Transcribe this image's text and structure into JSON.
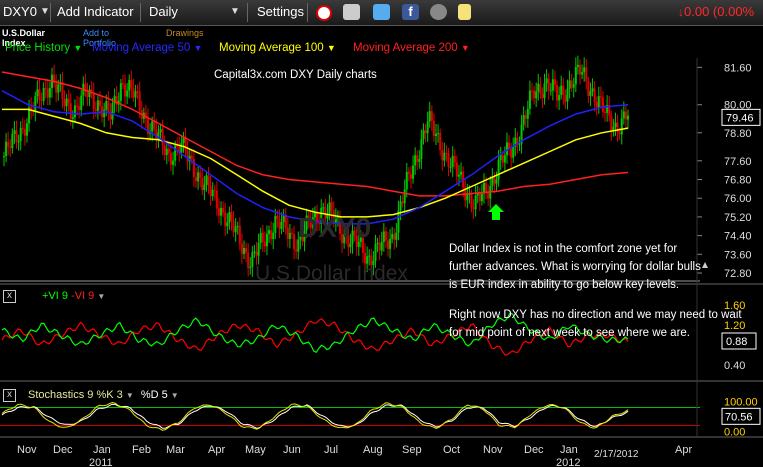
{
  "toolbar": {
    "symbol": "DXY0",
    "add_indicator": "Add Indicator",
    "period": "Daily",
    "settings": "Settings",
    "change": "0.00 (0.00%"
  },
  "sub": {
    "name": "U.S.Dollar Index",
    "add_portfolio": "Add to Portfolio",
    "drawings": "Drawings"
  },
  "legend": {
    "price": "Price History",
    "ma50": "Moving Average 50",
    "ma100": "Moving Average 100",
    "ma200": "Moving Average 200"
  },
  "annotations": {
    "title": "Capital3x.com DXY Daily charts",
    "line1": "Dollar Index is not in the comfort zone yet for",
    "line2": "further advances. What is worrying for dollar bulls",
    "line3": "is EUR index in ability to go below key levels.",
    "line4": "Right now DXY has no direction and we may need to wait",
    "line5": "for mid point of next week to see where we are.",
    "watermark_symbol": "DXY0",
    "watermark_name": "U.S.Dollar Index"
  },
  "vi_panel": {
    "plus": "+VI 9",
    "minus": "-VI 9"
  },
  "stoch_panel": {
    "label": "Stochastics 9 %K 3",
    "d": "%D 5"
  },
  "date_stamp": "2/17/2012",
  "colors": {
    "price_up": "#00c800",
    "price_down": "#e00000",
    "ma50": "#2020ff",
    "ma100": "#ffff00",
    "ma200": "#ff2020",
    "vi_plus": "#00ff00",
    "vi_minus": "#ff0000"
  },
  "chart_data": [
    {
      "type": "line",
      "title": "Capital3x.com DXY Daily charts",
      "x_ticks": [
        "Nov",
        "Dec",
        "Jan",
        "Feb",
        "Mar",
        "Apr",
        "May",
        "Jun",
        "Jul",
        "Aug",
        "Sep",
        "Oct",
        "Nov",
        "Dec",
        "Jan",
        "Apr"
      ],
      "year_labels": [
        "2011",
        "2012"
      ],
      "y_ticks": [
        "81.60",
        "80.00",
        "78.80",
        "77.60",
        "76.80",
        "76.00",
        "75.20",
        "74.40",
        "73.60",
        "72.80"
      ],
      "ylim": [
        72.5,
        82.0
      ],
      "last_value": "79.46",
      "series": [
        {
          "name": "Price History",
          "values": [
            77.8,
            78.6,
            79.4,
            80.3,
            81.1,
            80.2,
            79.8,
            80.5,
            80.1,
            79.4,
            81.0,
            80.4,
            79.5,
            78.6,
            77.9,
            78.2,
            77.5,
            76.5,
            76.0,
            75.0,
            74.3,
            73.2,
            74.2,
            75.0,
            74.6,
            74.1,
            74.9,
            75.6,
            75.1,
            74.4,
            74.0,
            73.5,
            73.9,
            74.4,
            76.2,
            77.8,
            79.3,
            78.4,
            77.4,
            76.6,
            75.7,
            76.3,
            77.4,
            78.0,
            79.1,
            80.5,
            81.0,
            80.3,
            80.9,
            81.4,
            80.6,
            79.6,
            79.1,
            79.5
          ]
        },
        {
          "name": "Moving Average 50",
          "values": [
            80.6,
            80.0,
            79.7,
            79.6,
            79.7,
            79.3,
            78.6,
            77.8,
            77.0,
            76.2,
            75.6,
            75.2,
            75.0,
            74.9,
            74.9,
            75.1,
            75.6,
            76.3,
            77.0,
            77.8,
            78.5,
            79.1,
            79.6,
            79.9,
            80.0
          ]
        },
        {
          "name": "Moving Average 100",
          "values": [
            79.8,
            79.8,
            79.5,
            79.2,
            78.8,
            78.6,
            78.5,
            78.2,
            77.7,
            77.0,
            76.3,
            75.7,
            75.4,
            75.2,
            75.2,
            75.3,
            75.6,
            76.0,
            76.5,
            77.0,
            77.5,
            78.0,
            78.5,
            78.8,
            79.0
          ]
        },
        {
          "name": "Moving Average 200",
          "values": [
            81.4,
            81.2,
            81.0,
            80.7,
            80.3,
            79.8,
            79.2,
            78.6,
            78.0,
            77.4,
            77.0,
            76.8,
            76.7,
            76.6,
            76.5,
            76.3,
            76.1,
            76.1,
            76.2,
            76.3,
            76.5,
            76.6,
            76.8,
            77.0,
            77.1
          ]
        }
      ]
    },
    {
      "type": "line",
      "y_ticks": [
        "1.60",
        "1.20",
        "0.80",
        "0.40"
      ],
      "ylim": [
        0.3,
        1.7
      ],
      "last_value": "0.88",
      "series": [
        {
          "name": "+VI 9",
          "values": [
            1.1,
            0.9,
            1.2,
            1.0,
            0.8,
            1.0,
            1.2,
            0.9,
            0.8,
            1.1,
            1.3,
            1.0,
            0.8,
            0.9,
            1.2,
            1.0,
            0.7,
            0.8,
            1.1,
            1.3,
            1.1,
            0.9,
            1.2,
            1.0,
            0.8,
            1.2,
            1.4,
            1.1,
            0.9,
            1.2,
            1.0,
            0.9,
            0.9
          ]
        },
        {
          "name": "-VI 9",
          "values": [
            0.9,
            1.1,
            0.8,
            1.0,
            1.2,
            1.0,
            0.8,
            1.1,
            1.2,
            0.9,
            0.7,
            1.0,
            1.2,
            1.1,
            0.8,
            1.0,
            1.3,
            1.2,
            0.9,
            0.7,
            0.9,
            1.1,
            0.8,
            1.0,
            1.2,
            0.8,
            0.6,
            0.9,
            1.1,
            0.8,
            1.0,
            1.0,
            0.85
          ]
        }
      ]
    },
    {
      "type": "line",
      "y_ticks": [
        "100.00",
        "0.00"
      ],
      "ylim": [
        -5,
        105
      ],
      "last_value": "70.56",
      "series": [
        {
          "name": "%K",
          "values": [
            60,
            90,
            80,
            30,
            10,
            40,
            85,
            95,
            70,
            20,
            5,
            30,
            80,
            90,
            60,
            15,
            10,
            50,
            90,
            85,
            40,
            10,
            20,
            70,
            95,
            80,
            30,
            10,
            40,
            90,
            75,
            20,
            15,
            60,
            90,
            80,
            30,
            10,
            50,
            70
          ]
        },
        {
          "name": "%D",
          "values": [
            55,
            80,
            82,
            45,
            20,
            35,
            75,
            90,
            78,
            35,
            12,
            25,
            70,
            88,
            68,
            25,
            12,
            40,
            80,
            88,
            50,
            18,
            18,
            60,
            88,
            85,
            40,
            15,
            35,
            80,
            80,
            30,
            18,
            50,
            85,
            82,
            40,
            15,
            45,
            65
          ]
        }
      ]
    }
  ]
}
